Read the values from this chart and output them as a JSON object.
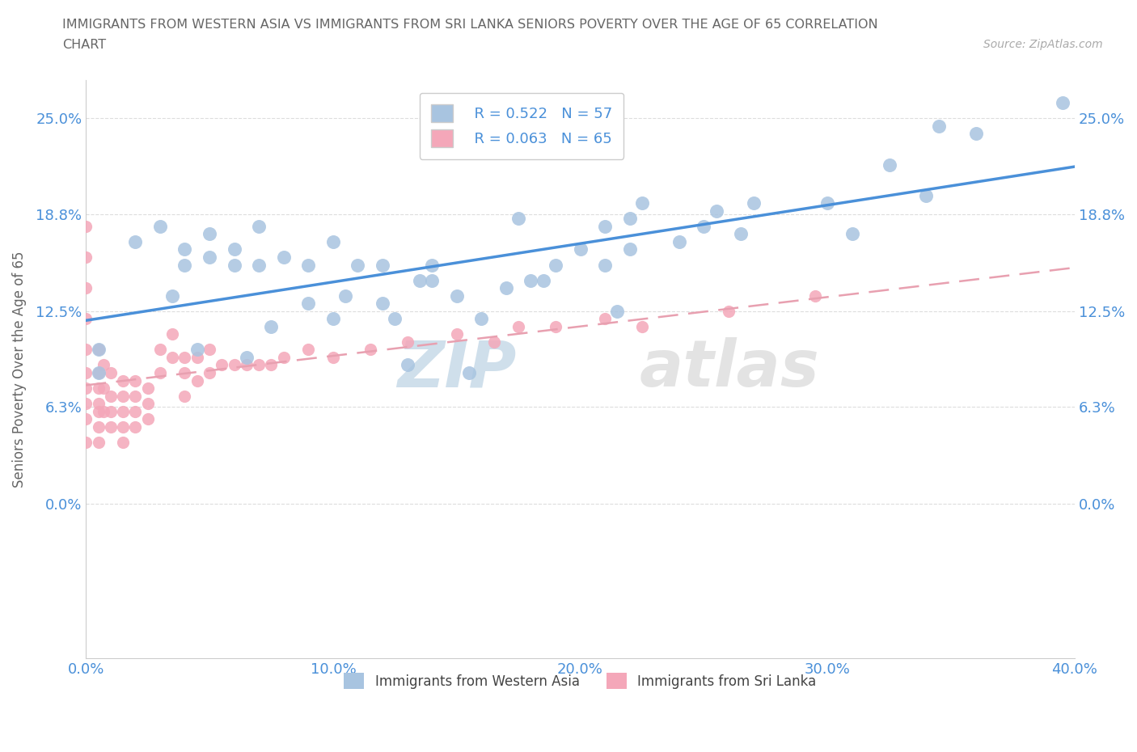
{
  "title_line1": "IMMIGRANTS FROM WESTERN ASIA VS IMMIGRANTS FROM SRI LANKA SENIORS POVERTY OVER THE AGE OF 65 CORRELATION",
  "title_line2": "CHART",
  "source_text": "Source: ZipAtlas.com",
  "ylabel": "Seniors Poverty Over the Age of 65",
  "xmin": 0.0,
  "xmax": 0.4,
  "ymin": -0.1,
  "ymax": 0.275,
  "yticks": [
    0.0,
    0.063,
    0.125,
    0.188,
    0.25
  ],
  "ytick_labels": [
    "0.0%",
    "6.3%",
    "12.5%",
    "18.8%",
    "25.0%"
  ],
  "xticks": [
    0.0,
    0.1,
    0.2,
    0.3,
    0.4
  ],
  "xtick_labels": [
    "0.0%",
    "10.0%",
    "20.0%",
    "30.0%",
    "40.0%"
  ],
  "western_asia_color": "#a8c4e0",
  "sri_lanka_color": "#f4a7b9",
  "western_asia_line_color": "#4a90d9",
  "sri_lanka_line_color": "#e8a0b0",
  "legend_r1": "R = 0.522   N = 57",
  "legend_r2": "R = 0.063   N = 65",
  "watermark_zip": "ZIP",
  "watermark_atlas": "atlas",
  "legend_text1": "Immigrants from Western Asia",
  "legend_text2": "Immigrants from Sri Lanka",
  "western_asia_x": [
    0.005,
    0.005,
    0.02,
    0.03,
    0.035,
    0.04,
    0.04,
    0.045,
    0.05,
    0.05,
    0.06,
    0.06,
    0.065,
    0.07,
    0.07,
    0.075,
    0.08,
    0.09,
    0.09,
    0.1,
    0.1,
    0.105,
    0.11,
    0.12,
    0.12,
    0.125,
    0.13,
    0.135,
    0.14,
    0.14,
    0.15,
    0.155,
    0.16,
    0.17,
    0.175,
    0.18,
    0.185,
    0.19,
    0.2,
    0.21,
    0.21,
    0.215,
    0.22,
    0.22,
    0.225,
    0.24,
    0.25,
    0.255,
    0.265,
    0.27,
    0.3,
    0.31,
    0.325,
    0.34,
    0.345,
    0.36,
    0.395
  ],
  "western_asia_y": [
    0.085,
    0.1,
    0.17,
    0.18,
    0.135,
    0.155,
    0.165,
    0.1,
    0.175,
    0.16,
    0.165,
    0.155,
    0.095,
    0.155,
    0.18,
    0.115,
    0.16,
    0.13,
    0.155,
    0.12,
    0.17,
    0.135,
    0.155,
    0.13,
    0.155,
    0.12,
    0.09,
    0.145,
    0.145,
    0.155,
    0.135,
    0.085,
    0.12,
    0.14,
    0.185,
    0.145,
    0.145,
    0.155,
    0.165,
    0.155,
    0.18,
    0.125,
    0.185,
    0.165,
    0.195,
    0.17,
    0.18,
    0.19,
    0.175,
    0.195,
    0.195,
    0.175,
    0.22,
    0.2,
    0.245,
    0.24,
    0.26
  ],
  "sri_lanka_x": [
    0.0,
    0.0,
    0.0,
    0.0,
    0.0,
    0.0,
    0.0,
    0.0,
    0.0,
    0.0,
    0.005,
    0.005,
    0.005,
    0.005,
    0.005,
    0.005,
    0.005,
    0.007,
    0.007,
    0.007,
    0.01,
    0.01,
    0.01,
    0.01,
    0.015,
    0.015,
    0.015,
    0.015,
    0.015,
    0.02,
    0.02,
    0.02,
    0.02,
    0.025,
    0.025,
    0.025,
    0.03,
    0.03,
    0.035,
    0.035,
    0.04,
    0.04,
    0.04,
    0.045,
    0.045,
    0.05,
    0.05,
    0.055,
    0.06,
    0.065,
    0.07,
    0.075,
    0.08,
    0.09,
    0.1,
    0.115,
    0.13,
    0.15,
    0.165,
    0.175,
    0.19,
    0.21,
    0.225,
    0.26,
    0.295
  ],
  "sri_lanka_y": [
    0.18,
    0.16,
    0.14,
    0.12,
    0.1,
    0.085,
    0.075,
    0.065,
    0.055,
    0.04,
    0.1,
    0.085,
    0.075,
    0.065,
    0.06,
    0.05,
    0.04,
    0.09,
    0.075,
    0.06,
    0.085,
    0.07,
    0.06,
    0.05,
    0.08,
    0.07,
    0.06,
    0.05,
    0.04,
    0.08,
    0.07,
    0.06,
    0.05,
    0.075,
    0.065,
    0.055,
    0.1,
    0.085,
    0.11,
    0.095,
    0.095,
    0.085,
    0.07,
    0.095,
    0.08,
    0.1,
    0.085,
    0.09,
    0.09,
    0.09,
    0.09,
    0.09,
    0.095,
    0.1,
    0.095,
    0.1,
    0.105,
    0.11,
    0.105,
    0.115,
    0.115,
    0.12,
    0.115,
    0.125,
    0.135
  ],
  "background_color": "#ffffff",
  "grid_color": "#dddddd",
  "title_color": "#666666",
  "axis_label_color": "#666666",
  "tick_color": "#4a90d9"
}
